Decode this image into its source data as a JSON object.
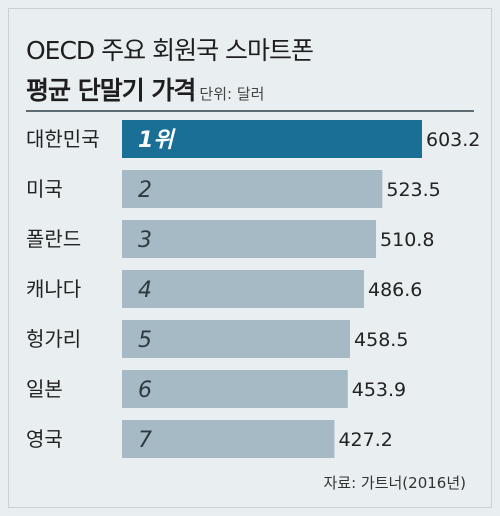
{
  "title_line1": "OECD 주요 회원국 스마트폰",
  "title_line2": "평균 단말기 가격",
  "unit": "단위: 달러",
  "source": "자료: 가트너(2016년)",
  "colors": {
    "highlight_bar": "#1a6f96",
    "bar": "#a6bac6",
    "background": "#e9eef1",
    "divider": "#5e6b73"
  },
  "chart_data": {
    "type": "bar",
    "orientation": "horizontal",
    "categories": [
      "대한민국",
      "미국",
      "폴란드",
      "캐나다",
      "헝가리",
      "일본",
      "영국"
    ],
    "ranks": [
      "1위",
      "2",
      "3",
      "4",
      "5",
      "6",
      "7"
    ],
    "values": [
      603.2,
      523.5,
      510.8,
      486.6,
      458.5,
      453.9,
      427.2
    ],
    "value_labels": [
      "603.2",
      "523.5",
      "510.8",
      "486.6",
      "458.5",
      "453.9",
      "427.2"
    ],
    "highlight_index": 0,
    "title": "OECD 주요 회원국 스마트폰 평균 단말기 가격",
    "unit": "단위: 달러",
    "xlim": [
      0,
      603.2
    ],
    "grid": false,
    "legend": "none"
  }
}
